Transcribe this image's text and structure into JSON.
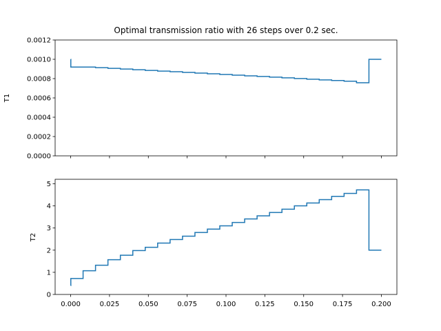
{
  "chart_data": [
    {
      "type": "line",
      "step": "post",
      "title": "Optimal transmission ratio with 26 steps over 0.2 sec.",
      "xlabel": "",
      "ylabel": "T1",
      "xlim": [
        -0.01,
        0.21
      ],
      "ylim": [
        0,
        0.0012
      ],
      "grid": false,
      "color": "#1f77b4",
      "yticks": [
        "0.0000",
        "0.0002",
        "0.0004",
        "0.0006",
        "0.0008",
        "0.0010",
        "0.0012"
      ],
      "ytick_values": [
        0,
        0.0002,
        0.0004,
        0.0006,
        0.0008,
        0.001,
        0.0012
      ],
      "xtick_values": [
        0,
        0.025,
        0.05,
        0.075,
        0.1,
        0.125,
        0.15,
        0.175,
        0.2
      ],
      "show_xtick_labels": false,
      "x": [
        0,
        0.0001,
        0.008,
        0.016,
        0.024,
        0.032,
        0.04,
        0.048,
        0.056,
        0.064,
        0.072,
        0.08,
        0.088,
        0.096,
        0.104,
        0.112,
        0.12,
        0.128,
        0.136,
        0.144,
        0.152,
        0.16,
        0.168,
        0.176,
        0.184,
        0.192,
        0.2
      ],
      "y": [
        0.001,
        0.00092,
        0.00092,
        0.000913,
        0.000906,
        0.000899,
        0.000892,
        0.000885,
        0.000878,
        0.000871,
        0.000864,
        0.000857,
        0.00085,
        0.000843,
        0.000836,
        0.000829,
        0.000822,
        0.000815,
        0.000808,
        0.000801,
        0.000794,
        0.000787,
        0.00078,
        0.000773,
        0.000757,
        0.001,
        0.001
      ]
    },
    {
      "type": "line",
      "step": "post",
      "title": "",
      "xlabel": "",
      "ylabel": "T2",
      "xlim": [
        -0.01,
        0.21
      ],
      "ylim": [
        0,
        5.2
      ],
      "grid": false,
      "color": "#1f77b4",
      "yticks": [
        "0",
        "1",
        "2",
        "3",
        "4",
        "5"
      ],
      "ytick_values": [
        0,
        1,
        2,
        3,
        4,
        5
      ],
      "xticks": [
        "0.000",
        "0.025",
        "0.050",
        "0.075",
        "0.100",
        "0.125",
        "0.150",
        "0.175",
        "0.200"
      ],
      "xtick_values": [
        0,
        0.025,
        0.05,
        0.075,
        0.1,
        0.125,
        0.15,
        0.175,
        0.2
      ],
      "show_xtick_labels": true,
      "x": [
        0,
        0.0001,
        0.008,
        0.016,
        0.024,
        0.032,
        0.04,
        0.048,
        0.056,
        0.064,
        0.072,
        0.08,
        0.088,
        0.096,
        0.104,
        0.112,
        0.12,
        0.128,
        0.136,
        0.144,
        0.152,
        0.16,
        0.168,
        0.176,
        0.184,
        0.192,
        0.2
      ],
      "y": [
        0.4,
        0.72,
        1.07,
        1.32,
        1.57,
        1.77,
        1.98,
        2.13,
        2.32,
        2.48,
        2.63,
        2.8,
        2.95,
        3.1,
        3.25,
        3.41,
        3.55,
        3.7,
        3.85,
        4.0,
        4.13,
        4.28,
        4.43,
        4.56,
        4.72,
        2.0,
        2.0
      ]
    }
  ]
}
